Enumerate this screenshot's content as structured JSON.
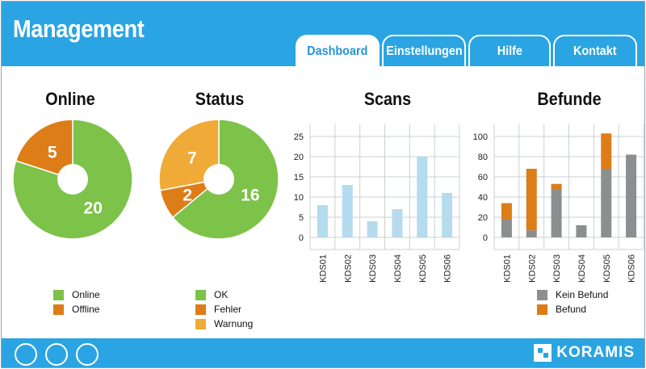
{
  "app": {
    "title": "Management"
  },
  "tabs": [
    {
      "label": "Dashboard",
      "active": true
    },
    {
      "label": "Einstellungen",
      "active": false
    },
    {
      "label": "Hilfe",
      "active": false
    },
    {
      "label": "Kontakt",
      "active": false
    }
  ],
  "colors": {
    "header": "#2aa4e2",
    "green": "#7dc249",
    "orange": "#dd7d18",
    "yellow": "#efaa37",
    "light_blue": "#b5dbee",
    "gray": "#8c8e90",
    "grid": "#cbd0d4"
  },
  "footer": {
    "logo_text": "KORAMIS",
    "buttons": [
      "circle-button-1",
      "circle-button-2",
      "circle-button-3"
    ]
  },
  "chart_data": [
    {
      "type": "pie",
      "title": "Online",
      "labels": [
        "Online",
        "Offline"
      ],
      "values": [
        20,
        5
      ],
      "colors": [
        "#7dc249",
        "#dd7d18"
      ],
      "legend": [
        "Online",
        "Offline"
      ]
    },
    {
      "type": "pie",
      "title": "Status",
      "labels": [
        "OK",
        "Fehler",
        "Warnung"
      ],
      "values": [
        16,
        2,
        7
      ],
      "colors": [
        "#7dc249",
        "#dd7d18",
        "#efaa37"
      ],
      "legend": [
        "OK",
        "Fehler",
        "Warnung"
      ]
    },
    {
      "type": "bar",
      "title": "Scans",
      "categories": [
        "KDS01",
        "KDS02",
        "KDS03",
        "KDS04",
        "KDS05",
        "KDS06"
      ],
      "values": [
        8,
        13,
        4,
        7,
        20,
        11
      ],
      "yticks": [
        0,
        5,
        10,
        15,
        20,
        25
      ],
      "ylim": [
        -3,
        28
      ],
      "color": "#b5dbee"
    },
    {
      "type": "bar",
      "title": "Befunde",
      "stacked": true,
      "categories": [
        "KDS01",
        "KDS02",
        "KDS03",
        "KDS04",
        "KDS05",
        "KDS06"
      ],
      "series": [
        {
          "name": "Kein Befund",
          "values": [
            18,
            7,
            48,
            12,
            68,
            82
          ],
          "color": "#8c8e90"
        },
        {
          "name": "Befund",
          "values": [
            16,
            61,
            5,
            0,
            35,
            0
          ],
          "color": "#dd7d18"
        }
      ],
      "yticks": [
        0,
        20,
        40,
        60,
        80,
        100
      ],
      "ylim": [
        -12,
        112
      ],
      "legend": [
        "Kein Befund",
        "Befund"
      ]
    }
  ]
}
